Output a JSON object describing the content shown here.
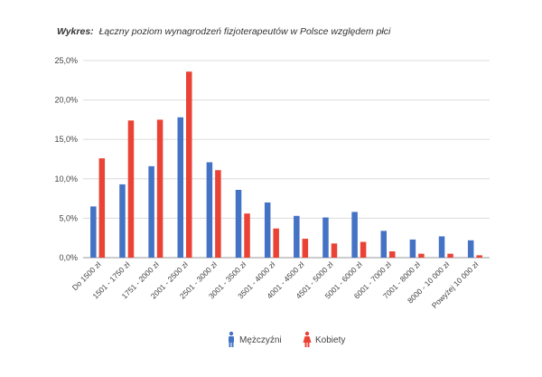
{
  "chart_data": {
    "type": "bar",
    "title_prefix": "Wykres:",
    "title": "Łączny poziom wynagrodzeń fizjoterapeutów w Polsce względem płci",
    "categories": [
      "Do 1500 zł",
      "1501 - 1750 zł",
      "1751 - 2000 zł",
      "2001 - 2500 zł",
      "2501 - 3000 zł",
      "3001 - 3500 zł",
      "3501 - 4000 zł",
      "4001 - 4500 zł",
      "4501 - 5000 zł",
      "5001 - 6000 zł",
      "6001 - 7000 zł",
      "7001 - 8000 zł",
      "8000 - 10 000 zł",
      "Powyżej 10 000 zł"
    ],
    "series": [
      {
        "name": "Mężczyźni",
        "color": "#4472c4",
        "values": [
          6.5,
          9.3,
          11.6,
          17.8,
          12.1,
          8.6,
          7.0,
          5.3,
          5.1,
          5.8,
          3.4,
          2.3,
          2.7,
          2.2
        ]
      },
      {
        "name": "Kobiety",
        "color": "#ea4335",
        "values": [
          12.6,
          17.4,
          17.5,
          23.6,
          11.1,
          5.6,
          3.7,
          2.4,
          1.8,
          2.0,
          0.8,
          0.5,
          0.5,
          0.3
        ]
      }
    ],
    "yticks": [
      "0,0%",
      "5,0%",
      "10,0%",
      "15,0%",
      "20,0%",
      "25,0%"
    ],
    "ylim": [
      0,
      25
    ],
    "grid": true,
    "legend_position": "bottom",
    "legend_icons": [
      "male-person-icon",
      "female-person-icon"
    ]
  }
}
